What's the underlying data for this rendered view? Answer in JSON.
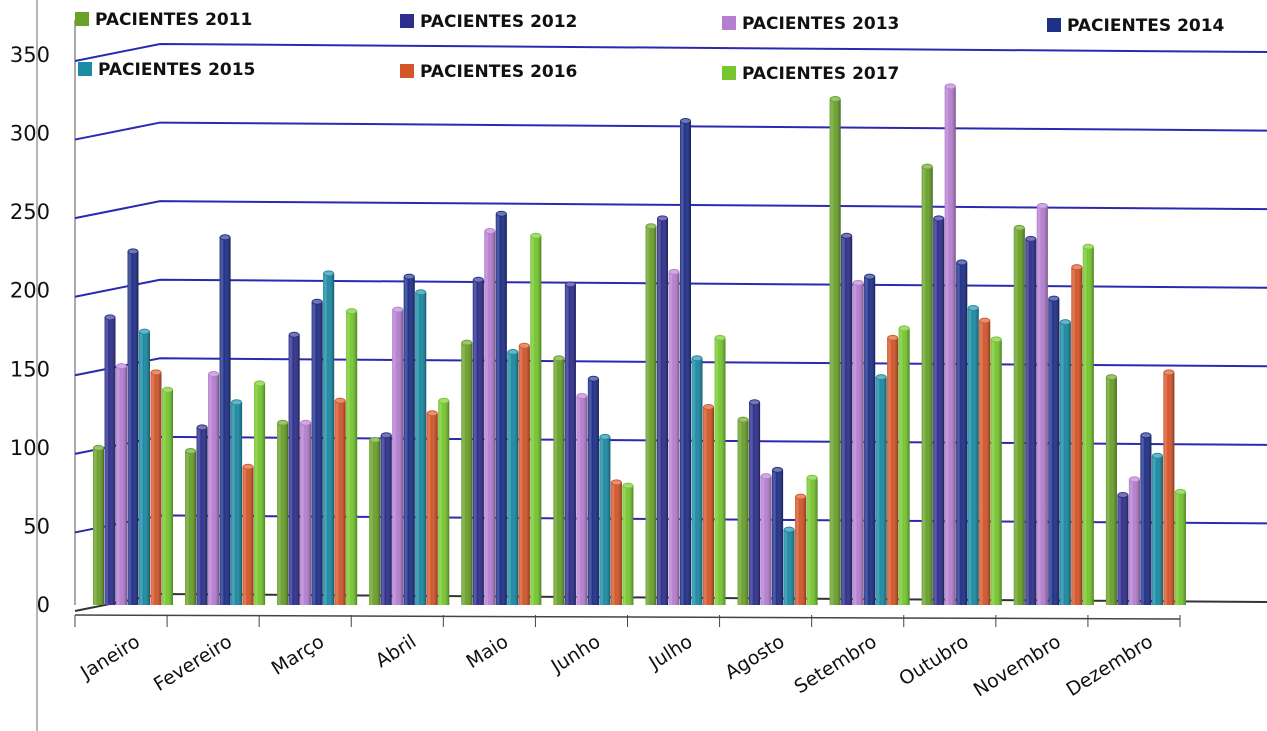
{
  "chart_data": {
    "type": "bar",
    "title": "",
    "xlabel": "",
    "ylabel": "",
    "ylim": [
      0,
      350
    ],
    "yticks": [
      "0",
      "50",
      "100",
      "150",
      "200",
      "250",
      "300",
      "350"
    ],
    "grid": true,
    "legend_position": "top",
    "categories": [
      "Janeiro",
      "Fevereiro",
      "Março",
      "Abril",
      "Maio",
      "Junho",
      "Julho",
      "Agosto",
      "Setembro",
      "Outubro",
      "Novembro",
      "Dezembro"
    ],
    "series": [
      {
        "name": "PACIENTES 2011",
        "color": "#6aa12a",
        "values": [
          100,
          98,
          116,
          105,
          167,
          157,
          241,
          118,
          322,
          279,
          240,
          145
        ]
      },
      {
        "name": "PACIENTES 2012",
        "color": "#2e2f8c",
        "values": [
          183,
          113,
          172,
          108,
          207,
          204,
          246,
          129,
          235,
          246,
          233,
          70
        ]
      },
      {
        "name": "PACIENTES 2013",
        "color": "#b57fd0",
        "values": [
          152,
          147,
          116,
          188,
          238,
          133,
          212,
          82,
          205,
          330,
          254,
          80
        ]
      },
      {
        "name": "PACIENTES 2014",
        "color": "#1f3088",
        "values": [
          225,
          234,
          193,
          209,
          249,
          144,
          308,
          86,
          209,
          218,
          195,
          108
        ]
      },
      {
        "name": "PACIENTES 2015",
        "color": "#1b8aa3",
        "values": [
          174,
          129,
          211,
          199,
          161,
          107,
          157,
          48,
          145,
          189,
          180,
          95
        ]
      },
      {
        "name": "PACIENTES 2016",
        "color": "#d4562a",
        "values": [
          148,
          88,
          130,
          122,
          165,
          78,
          126,
          69,
          170,
          181,
          215,
          148
        ]
      },
      {
        "name": "PACIENTES 2017",
        "color": "#76c72f",
        "values": [
          137,
          141,
          187,
          130,
          235,
          76,
          170,
          81,
          176,
          169,
          228,
          72
        ]
      }
    ]
  }
}
